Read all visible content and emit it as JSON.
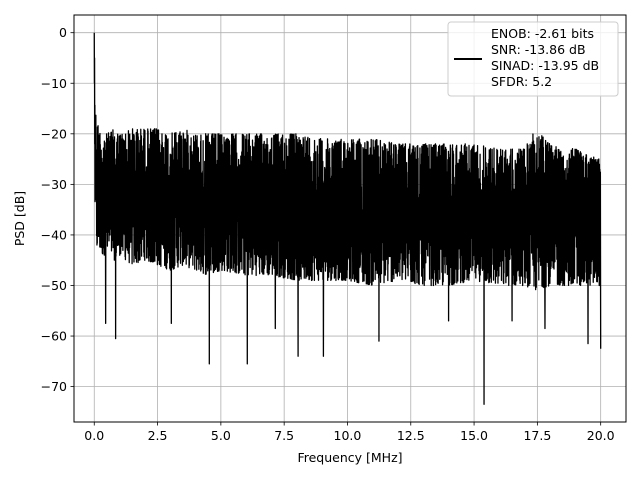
{
  "chart_data": {
    "type": "line",
    "title": "",
    "xlabel": "Frequency [MHz]",
    "ylabel": "PSD [dB]",
    "xlim": [
      -0.8,
      21.0
    ],
    "ylim": [
      -77.0,
      3.5
    ],
    "x_ticks": [
      0.0,
      2.5,
      5.0,
      7.5,
      10.0,
      12.5,
      15.0,
      17.5,
      20.0
    ],
    "x_tick_labels": [
      "0.0",
      "2.5",
      "5.0",
      "7.5",
      "10.0",
      "12.5",
      "15.0",
      "17.5",
      "20.0"
    ],
    "y_ticks": [
      0,
      -10,
      -20,
      -30,
      -40,
      -50,
      -60,
      -70
    ],
    "y_tick_labels": [
      "0",
      "−10",
      "−20",
      "−30",
      "−40",
      "−50",
      "−60",
      "−70"
    ],
    "grid": true,
    "legend_position": "top-right",
    "line_color": "#000000",
    "legend": {
      "entries": [
        "ENOB: -2.61 bits",
        "SNR: -13.86 dB",
        "SINAD: -13.95 dB",
        "SFDR: 5.2"
      ]
    },
    "series": [
      {
        "description": "PSD envelope samples (data units)",
        "x": [
          0.0,
          0.02,
          0.05,
          0.1,
          0.2,
          0.3,
          0.5,
          0.8,
          1.0,
          1.5,
          2.0,
          2.5,
          3.0,
          3.5,
          4.0,
          4.5,
          5.0,
          6.0,
          7.0,
          8.0,
          9.0,
          10.0,
          11.0,
          12.0,
          13.0,
          14.0,
          15.0,
          16.0,
          17.0,
          17.4,
          18.0,
          19.0,
          20.0
        ],
        "peak": [
          0,
          -5,
          -15,
          -17,
          -19,
          -20,
          -20,
          -19,
          -20,
          -19,
          -19,
          -19,
          -20,
          -19,
          -20,
          -20,
          -20,
          -20,
          -20,
          -20,
          -21,
          -21,
          -21,
          -22,
          -22,
          -22,
          -22,
          -23,
          -23,
          -19,
          -22,
          -23,
          -25
        ],
        "floor": [
          -11,
          -33,
          -40,
          -43,
          -43,
          -44,
          -44,
          -45,
          -44,
          -46,
          -45,
          -46,
          -47,
          -46,
          -47,
          -48,
          -47,
          -48,
          -48,
          -49,
          -49,
          -49,
          -50,
          -49,
          -50,
          -50,
          -49,
          -50,
          -50,
          -51,
          -50,
          -50,
          -50
        ]
      }
    ],
    "deep_nulls": [
      {
        "x": 0.45,
        "y": -57.5
      },
      {
        "x": 0.85,
        "y": -60.5
      },
      {
        "x": 3.05,
        "y": -57.5
      },
      {
        "x": 4.55,
        "y": -65.5
      },
      {
        "x": 6.05,
        "y": -65.5
      },
      {
        "x": 7.15,
        "y": -58.5
      },
      {
        "x": 8.05,
        "y": -64.0
      },
      {
        "x": 9.05,
        "y": -64.0
      },
      {
        "x": 11.25,
        "y": -61.0
      },
      {
        "x": 14.0,
        "y": -57.0
      },
      {
        "x": 15.4,
        "y": -73.5
      },
      {
        "x": 16.5,
        "y": -57.0
      },
      {
        "x": 17.8,
        "y": -58.5
      },
      {
        "x": 19.5,
        "y": -61.5
      },
      {
        "x": 20.0,
        "y": -62.5
      }
    ]
  }
}
